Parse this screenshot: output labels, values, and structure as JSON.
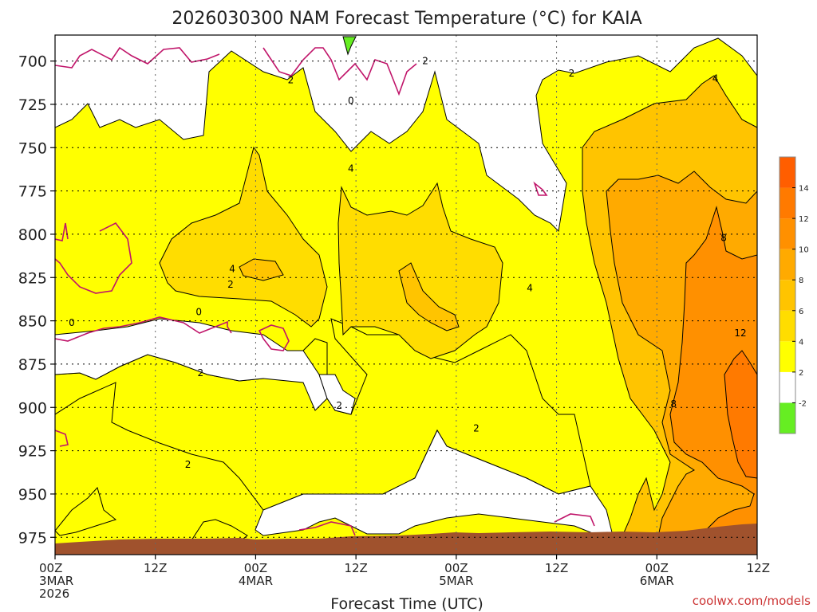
{
  "chart_data": {
    "type": "heatmap",
    "title": "2026030300 NAM Forecast Temperature (°C) for KAIA",
    "xlabel": "Forecast Time (UTC)",
    "ylabel": "",
    "y_axis_unit": "hPa",
    "y_ticks": [
      700,
      725,
      750,
      775,
      800,
      825,
      850,
      875,
      900,
      925,
      950,
      975
    ],
    "x_ticks": [
      {
        "hour": 0,
        "line1": "00Z",
        "line2": "3MAR",
        "line3": "2026"
      },
      {
        "hour": 12,
        "line1": "12Z",
        "line2": "",
        "line3": ""
      },
      {
        "hour": 24,
        "line1": "00Z",
        "line2": "4MAR",
        "line3": ""
      },
      {
        "hour": 36,
        "line1": "12Z",
        "line2": "",
        "line3": ""
      },
      {
        "hour": 48,
        "line1": "00Z",
        "line2": "5MAR",
        "line3": ""
      },
      {
        "hour": 60,
        "line1": "12Z",
        "line2": "",
        "line3": ""
      },
      {
        "hour": 72,
        "line1": "00Z",
        "line2": "6MAR",
        "line3": ""
      },
      {
        "hour": 84,
        "line1": "12Z",
        "line2": "",
        "line3": ""
      }
    ],
    "xlim": [
      0,
      84
    ],
    "ylim": [
      985,
      685
    ],
    "colorbar": {
      "bins": [
        {
          "lo": -4,
          "hi": -2,
          "color": "#66ee22"
        },
        {
          "lo": -2,
          "hi": 2,
          "color": "#ffffff"
        },
        {
          "lo": 2,
          "hi": 4,
          "color": "#ffff00"
        },
        {
          "lo": 4,
          "hi": 6,
          "color": "#ffdd00"
        },
        {
          "lo": 6,
          "hi": 8,
          "color": "#ffc400"
        },
        {
          "lo": 8,
          "hi": 10,
          "color": "#ffaa00"
        },
        {
          "lo": 10,
          "hi": 12,
          "color": "#ff9000"
        },
        {
          "lo": 12,
          "hi": 14,
          "color": "#ff7a00"
        },
        {
          "lo": 14,
          "hi": 16,
          "color": "#ff5e00"
        }
      ],
      "tick_labels": [
        "-2",
        "2",
        "4",
        "6",
        "8",
        "10",
        "12",
        "14"
      ]
    },
    "contour_labels": [
      {
        "text": "2",
        "hour": 28.2,
        "p": 711
      },
      {
        "text": "0",
        "hour": 35.4,
        "p": 723
      },
      {
        "text": "2",
        "hour": 44.3,
        "p": 700
      },
      {
        "text": "2",
        "hour": 61.8,
        "p": 707
      },
      {
        "text": "4",
        "hour": 79.0,
        "p": 710
      },
      {
        "text": "4",
        "hour": 35.4,
        "p": 762
      },
      {
        "text": "4",
        "hour": 21.2,
        "p": 820
      },
      {
        "text": "2",
        "hour": 21.0,
        "p": 829
      },
      {
        "text": "4",
        "hour": 56.8,
        "p": 831
      },
      {
        "text": "0",
        "hour": 17.2,
        "p": 845
      },
      {
        "text": "0",
        "hour": 2.0,
        "p": 851
      },
      {
        "text": "8",
        "hour": 80.0,
        "p": 802
      },
      {
        "text": "12",
        "hour": 82.0,
        "p": 857
      },
      {
        "text": "2",
        "hour": 17.4,
        "p": 880
      },
      {
        "text": "8",
        "hour": 74.0,
        "p": 898
      },
      {
        "text": "2",
        "hour": 34.0,
        "p": 899
      },
      {
        "text": "2",
        "hour": 50.4,
        "p": 912
      },
      {
        "text": "2",
        "hour": 15.9,
        "p": 933
      }
    ],
    "notes": "Time-height cross section of forecast temperature; warm (8-14 °C) air near the surface late in the period, 2-6 °C layers mid-period, sub-zero pockets near 700 hPa. Brown band at bottom = terrain/surface."
  },
  "credit": "coolwx.com/models"
}
